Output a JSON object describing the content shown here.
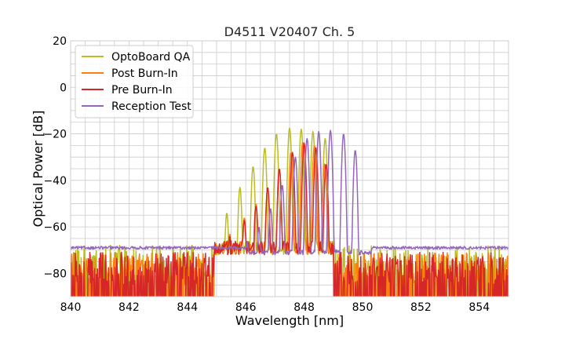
{
  "chart_data": {
    "type": "line",
    "title": "D4511 V20407 Ch. 5",
    "xlabel": "Wavelength [nm]",
    "ylabel": "Optical Power [dB]",
    "xlim": [
      840,
      855
    ],
    "ylim": [
      -90,
      20
    ],
    "xticks": [
      840,
      842,
      844,
      846,
      848,
      850,
      852,
      854
    ],
    "xtick_labels": [
      "840",
      "842",
      "844",
      "846",
      "848",
      "850",
      "852",
      "854"
    ],
    "yticks": [
      20,
      0,
      -20,
      -40,
      -60,
      -80
    ],
    "ytick_labels": [
      "20",
      "0",
      "−20",
      "−40",
      "−60",
      "−80"
    ],
    "grid": true,
    "legend_position": "top-left",
    "series": [
      {
        "name": "OptoBoard QA",
        "color": "#bcbd22",
        "noise_floor": -77,
        "noise_range": [
          844.9,
          849.0
        ],
        "peaks": [
          {
            "x": 844.9,
            "y": -65
          },
          {
            "x": 845.35,
            "y": -54
          },
          {
            "x": 845.8,
            "y": -43
          },
          {
            "x": 846.25,
            "y": -34
          },
          {
            "x": 846.65,
            "y": -26
          },
          {
            "x": 847.05,
            "y": -20
          },
          {
            "x": 847.5,
            "y": -17.5
          },
          {
            "x": 847.9,
            "y": -18
          },
          {
            "x": 848.3,
            "y": -19
          },
          {
            "x": 848.72,
            "y": -22
          }
        ]
      },
      {
        "name": "Post Burn-In",
        "color": "#ff7f0e",
        "noise_floor": -80,
        "noise_range": [
          844.9,
          849.0
        ],
        "peaks": [
          {
            "x": 845.05,
            "y": -70
          },
          {
            "x": 845.45,
            "y": -63
          },
          {
            "x": 845.95,
            "y": -56
          },
          {
            "x": 846.35,
            "y": -50
          },
          {
            "x": 846.75,
            "y": -43
          },
          {
            "x": 847.15,
            "y": -35
          },
          {
            "x": 847.55,
            "y": -28
          },
          {
            "x": 847.95,
            "y": -23.5
          },
          {
            "x": 848.35,
            "y": -25
          },
          {
            "x": 848.7,
            "y": -33
          }
        ]
      },
      {
        "name": "Pre Burn-In",
        "color": "#d62728",
        "noise_floor": -80,
        "noise_range": [
          844.9,
          849.0
        ],
        "peaks": [
          {
            "x": 845.05,
            "y": -70
          },
          {
            "x": 845.45,
            "y": -64
          },
          {
            "x": 845.95,
            "y": -57
          },
          {
            "x": 846.35,
            "y": -51
          },
          {
            "x": 846.75,
            "y": -43
          },
          {
            "x": 847.15,
            "y": -35
          },
          {
            "x": 847.6,
            "y": -28
          },
          {
            "x": 848.0,
            "y": -24
          },
          {
            "x": 848.4,
            "y": -26
          },
          {
            "x": 848.75,
            "y": -33
          }
        ]
      },
      {
        "name": "Reception Test",
        "color": "#9467bd",
        "noise_floor": -69,
        "noise_range": [
          846.0,
          850.3
        ],
        "peaks": [
          {
            "x": 846.05,
            "y": -66
          },
          {
            "x": 846.45,
            "y": -60
          },
          {
            "x": 846.85,
            "y": -52
          },
          {
            "x": 847.25,
            "y": -42
          },
          {
            "x": 847.7,
            "y": -30
          },
          {
            "x": 848.1,
            "y": -22
          },
          {
            "x": 848.5,
            "y": -19
          },
          {
            "x": 848.9,
            "y": -18.5
          },
          {
            "x": 849.35,
            "y": -20
          },
          {
            "x": 849.75,
            "y": -27
          }
        ]
      }
    ]
  }
}
